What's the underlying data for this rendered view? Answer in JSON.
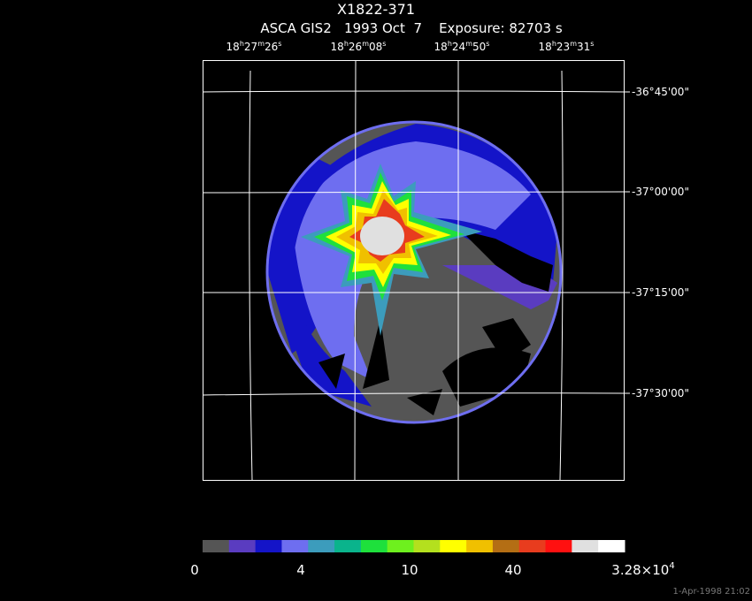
{
  "header": {
    "title": "X1822-371",
    "subtitle": "ASCA GIS2   1993 Oct  7    Exposure: 82703 s"
  },
  "ra_labels": [
    [
      "18",
      "h",
      "27",
      "m",
      "26",
      "s"
    ],
    [
      "18",
      "h",
      "26",
      "m",
      "08",
      "s"
    ],
    [
      "18",
      "h",
      "24",
      "m",
      "50",
      "s"
    ],
    [
      "18",
      "h",
      "23",
      "m",
      "31",
      "s"
    ]
  ],
  "dec_labels": [
    "-36°45'00\"",
    "-37°00'00\"",
    "-37°15'00\"",
    "-37°30'00\""
  ],
  "colorbar": {
    "colors": [
      "#555555",
      "#5a3cc0",
      "#1414c8",
      "#6e6ef0",
      "#3c9cbc",
      "#0ab48c",
      "#1ee03c",
      "#6ef01e",
      "#b4e01e",
      "#ffff00",
      "#f0c000",
      "#b46e14",
      "#e83c1e",
      "#ff1010",
      "#e0e0e0",
      "#ffffff"
    ],
    "labels": [
      "0",
      "4",
      "10",
      "40",
      "3.28×10"
    ],
    "exponent": "4"
  },
  "timestamp": "1-Apr-1998 21:02"
}
